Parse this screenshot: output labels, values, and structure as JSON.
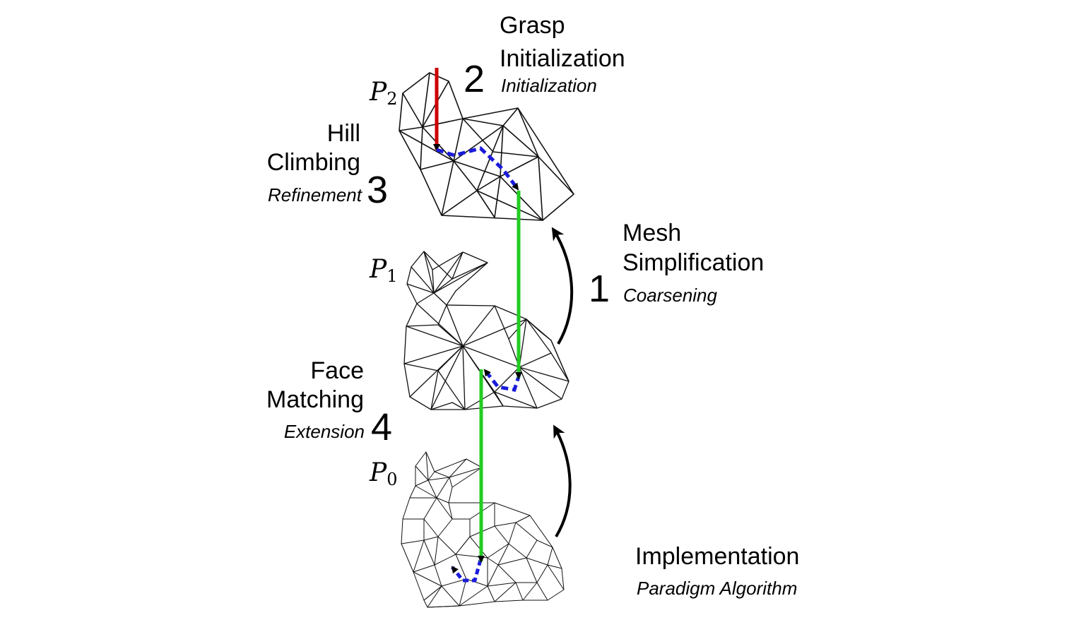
{
  "levels": [
    {
      "symbol": "P",
      "subscript": "2"
    },
    {
      "symbol": "P",
      "subscript": "1"
    },
    {
      "symbol": "P",
      "subscript": "0"
    }
  ],
  "steps": {
    "grasp": {
      "line1": "Grasp",
      "line2": "Initialization",
      "sub": "Initialization",
      "number": "2"
    },
    "hill": {
      "line1": "Hill",
      "line2": "Climbing",
      "sub": "Refinement",
      "number": "3"
    },
    "mesh": {
      "line1": "Mesh",
      "line2": "Simplification",
      "sub": "Coarsening",
      "number": "1"
    },
    "face": {
      "line1": "Face",
      "line2": "Matching",
      "sub": "Extension",
      "number": "4"
    }
  },
  "footer": {
    "title": "Implementation",
    "sub": "Paradigm Algorithm"
  },
  "colors": {
    "init_arrow": "#cc0000",
    "projection": "#22cc22",
    "local_path": "#1a1adb",
    "mesh": "#111111"
  }
}
